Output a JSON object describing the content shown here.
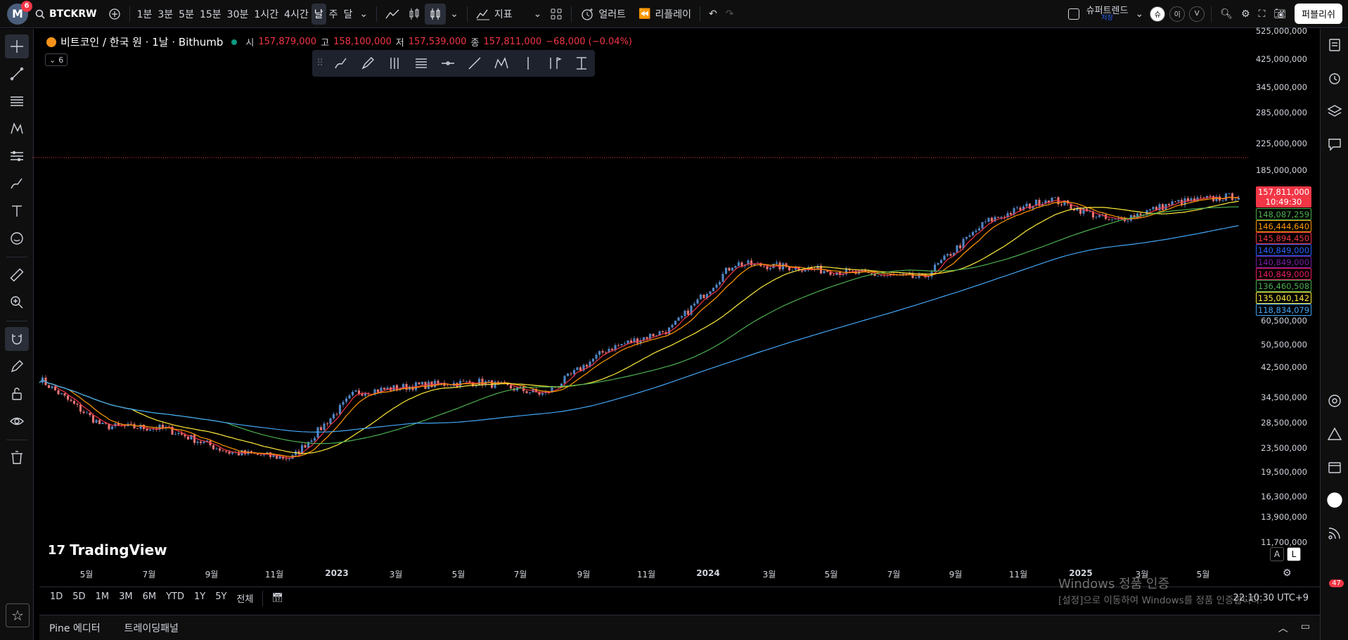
{
  "topbar": {
    "avatar_letter": "M",
    "avatar_badge": "6",
    "symbol": "BTCKRW",
    "intervals": [
      "1분",
      "3분",
      "5분",
      "15분",
      "30분",
      "1시간",
      "4시간",
      "날",
      "주",
      "달"
    ],
    "active_interval_index": 7,
    "indicators_label": "지표",
    "alert_label": "얼러트",
    "replay_label": "리플레이",
    "layout_name": "슈퍼트렌드",
    "layout_saved": "저장",
    "circle_btn_1": "슈",
    "circle_btn_2": "이",
    "circle_btn_3": "V",
    "publish_label": "퍼블리쉬"
  },
  "legend": {
    "title": "비트코인 / 한국 원 · 1날 · Bithumb",
    "open_label": "시",
    "open": "157,879,000",
    "high_label": "고",
    "high": "158,100,000",
    "low_label": "저",
    "low": "157,539,000",
    "close_label": "종",
    "close": "157,811,000",
    "change": "−68,000 (−0.04%)",
    "collapse_count": "6"
  },
  "price_axis": {
    "ticks": [
      "525,000,000",
      "425,000,000",
      "345,000,000",
      "285,000,000",
      "225,000,000",
      "185,000,000",
      "60,500,000",
      "50,500,000",
      "42,500,000",
      "34,500,000",
      "28,500,000",
      "23,500,000",
      "19,500,000",
      "16,300,000",
      "13,900,000",
      "11,700,000"
    ],
    "current_price": "157,811,000",
    "countdown": "10:49:30",
    "ma_labels": [
      {
        "value": "148,087,259",
        "color": "#4caf50"
      },
      {
        "value": "146,444,640",
        "color": "#ff9800"
      },
      {
        "value": "145,894,450",
        "color": "#f23645"
      },
      {
        "value": "140,849,000",
        "color": "#2962ff"
      },
      {
        "value": "140,849,000",
        "color": "#7b1fa2"
      },
      {
        "value": "140,849,000",
        "color": "#e91e63"
      },
      {
        "value": "136,460,508",
        "color": "#4caf50"
      },
      {
        "value": "135,040,142",
        "color": "#ffeb3b"
      },
      {
        "value": "118,834,079",
        "color": "#42a5f5"
      }
    ]
  },
  "time_axis": [
    "5월",
    "7월",
    "9월",
    "11월",
    "2023",
    "3월",
    "5월",
    "7월",
    "9월",
    "11월",
    "2024",
    "3월",
    "5월",
    "7월",
    "9월",
    "11월",
    "2025",
    "3월",
    "5월"
  ],
  "ranges": [
    "1D",
    "5D",
    "1M",
    "3M",
    "6M",
    "YTD",
    "1Y",
    "5Y",
    "전체"
  ],
  "timezone": "22:10:30 UTC+9",
  "footer": {
    "pine": "Pine 에디터",
    "panel": "트레이딩패널"
  },
  "brand": "TradingView",
  "al": {
    "a": "A",
    "l": "L"
  },
  "watermark": {
    "line1": "Windows 정품 인증",
    "line2": "[설정]으로 이동하여 Windows를 정품 인증합니다."
  },
  "notification_count": "47",
  "chart_data": {
    "type": "candlestick",
    "title": "비트코인 / 한국 원 · 1날 · Bithumb",
    "x": [
      "2022-05",
      "2022-07",
      "2022-09",
      "2022-11",
      "2023-01",
      "2023-03",
      "2023-05",
      "2023-07",
      "2023-09",
      "2023-11",
      "2024-01",
      "2024-03",
      "2024-05",
      "2024-07",
      "2024-09",
      "2024-11",
      "2025-01",
      "2025-03",
      "2025-05",
      "2025-06"
    ],
    "close": [
      40000000,
      28000000,
      27500000,
      23000000,
      22000000,
      36000000,
      38000000,
      39000000,
      35500000,
      50000000,
      58000000,
      95000000,
      92000000,
      88000000,
      85000000,
      130000000,
      155000000,
      130000000,
      150000000,
      157811000
    ],
    "y_scale": "log",
    "ylim": [
      11700000,
      525000000
    ],
    "last_price": 157811000
  }
}
